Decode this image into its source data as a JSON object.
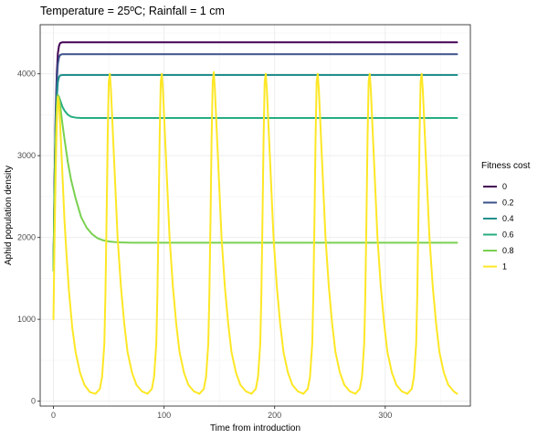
{
  "chart_data": {
    "type": "line",
    "title": "Temperature = 25ºC; Rainfall = 1 cm",
    "xlabel": "Time from introduction",
    "ylabel": "Aphid population density",
    "xlim": [
      -12,
      377
    ],
    "ylim": [
      -60,
      4600
    ],
    "x_ticks": [
      0,
      100,
      200,
      300
    ],
    "y_ticks": [
      0,
      1000,
      2000,
      3000,
      4000
    ],
    "x_tick_labels": [
      "0",
      "100",
      "200",
      "300"
    ],
    "y_tick_labels": [
      "0",
      "1000",
      "2000",
      "3000",
      "4000"
    ],
    "grid": true,
    "legend": {
      "title": "Fitness cost",
      "position": "right"
    },
    "series": [
      {
        "name": "0",
        "color": "#440154",
        "x": [
          0,
          1,
          2,
          3,
          4,
          5,
          6,
          8,
          365
        ],
        "y": [
          1600,
          2700,
          3500,
          4000,
          4250,
          4340,
          4375,
          4385,
          4385
        ]
      },
      {
        "name": "0.2",
        "color": "#3b528b",
        "x": [
          0,
          1,
          2,
          3,
          4,
          5,
          6,
          8,
          365
        ],
        "y": [
          1600,
          2700,
          3450,
          3900,
          4120,
          4200,
          4230,
          4240,
          4240
        ]
      },
      {
        "name": "0.4",
        "color": "#21908c",
        "x": [
          0,
          1,
          2,
          3,
          4,
          5,
          6,
          8,
          365
        ],
        "y": [
          1600,
          2600,
          3300,
          3700,
          3900,
          3960,
          3980,
          3985,
          3985
        ]
      },
      {
        "name": "0.6",
        "color": "#27ad81",
        "x": [
          0,
          1,
          2,
          3,
          4,
          5,
          6,
          8,
          10,
          13,
          16,
          20,
          25,
          365
        ],
        "y": [
          1600,
          2500,
          3200,
          3600,
          3720,
          3720,
          3680,
          3600,
          3550,
          3500,
          3475,
          3465,
          3460,
          3460
        ]
      },
      {
        "name": "0.8",
        "color": "#7ad151",
        "x": [
          0,
          1,
          2,
          3,
          4,
          5,
          6,
          8,
          10,
          13,
          16,
          20,
          25,
          30,
          35,
          40,
          45,
          50,
          55,
          60,
          70,
          365
        ],
        "y": [
          1600,
          2500,
          3200,
          3600,
          3740,
          3720,
          3620,
          3400,
          3200,
          2920,
          2700,
          2480,
          2250,
          2120,
          2040,
          1990,
          1965,
          1952,
          1945,
          1940,
          1936,
          1936
        ]
      },
      {
        "name": "1",
        "color": "#fde725",
        "x": [
          0,
          1,
          2,
          3,
          4,
          5,
          6,
          7,
          8,
          10,
          12,
          14,
          17,
          20,
          24,
          28,
          33,
          38,
          42,
          44,
          46,
          47,
          48,
          49,
          50,
          51,
          52,
          54,
          56,
          58,
          61,
          64,
          67,
          71,
          75,
          80,
          85,
          89,
          91,
          93,
          94,
          95,
          96,
          97,
          98,
          99,
          101,
          103,
          105,
          108,
          111,
          114,
          118,
          122,
          127,
          132,
          136,
          138,
          140,
          141,
          142,
          143,
          144,
          145,
          146,
          148,
          150,
          152,
          155,
          158,
          161,
          165,
          169,
          174,
          179,
          183,
          185,
          187,
          188,
          189,
          190,
          191,
          192,
          193,
          195,
          197,
          199,
          202,
          205,
          208,
          212,
          216,
          221,
          226,
          230,
          232,
          234,
          235,
          236,
          237,
          238,
          239,
          240,
          242,
          244,
          246,
          249,
          252,
          255,
          259,
          263,
          268,
          273,
          277,
          279,
          281,
          282,
          283,
          284,
          285,
          286,
          287,
          289,
          291,
          293,
          296,
          299,
          302,
          306,
          310,
          315,
          320,
          324,
          326,
          328,
          329,
          330,
          331,
          332,
          333,
          334,
          336,
          338,
          340,
          343,
          346,
          349,
          353,
          357,
          362,
          365
        ],
        "y": [
          1000,
          2000,
          2800,
          3400,
          3720,
          3650,
          3400,
          3100,
          2800,
          2200,
          1750,
          1350,
          900,
          600,
          350,
          200,
          110,
          90,
          150,
          300,
          700,
          1300,
          2200,
          3200,
          3900,
          4000,
          3800,
          3200,
          2600,
          2000,
          1400,
          950,
          600,
          350,
          200,
          120,
          90,
          150,
          300,
          700,
          1300,
          2200,
          3200,
          3900,
          4000,
          3800,
          3200,
          2600,
          2000,
          1400,
          950,
          600,
          350,
          200,
          120,
          90,
          150,
          300,
          700,
          1300,
          2200,
          3200,
          3900,
          4020,
          3800,
          3200,
          2600,
          2000,
          1400,
          950,
          600,
          350,
          200,
          120,
          90,
          150,
          300,
          700,
          1300,
          2200,
          3200,
          3900,
          4000,
          3800,
          3200,
          2600,
          2000,
          1400,
          950,
          600,
          350,
          200,
          120,
          90,
          150,
          300,
          700,
          1300,
          2200,
          3200,
          3900,
          4000,
          3800,
          3200,
          2600,
          2000,
          1400,
          950,
          600,
          350,
          200,
          120,
          90,
          150,
          300,
          700,
          1300,
          2200,
          3200,
          3900,
          4000,
          3800,
          3200,
          2600,
          2000,
          1400,
          950,
          600,
          350,
          200,
          120,
          90,
          150,
          300,
          700,
          1300,
          2200,
          3200,
          3900,
          4000,
          3800,
          3200,
          2600,
          2000,
          1400,
          950,
          600,
          350,
          200,
          120,
          90
        ]
      }
    ]
  }
}
